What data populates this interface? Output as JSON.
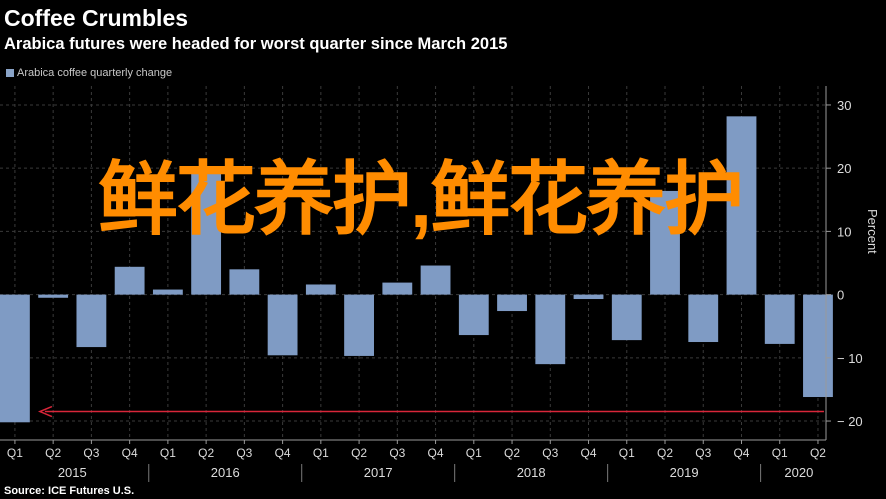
{
  "header": {
    "title": "Coffee Crumbles",
    "subtitle": "Arabica futures were headed for worst quarter since March 2015"
  },
  "legend": {
    "label": "Arabica coffee quarterly change"
  },
  "source": "Source: ICE Futures U.S.",
  "watermark": "鲜花养护,鲜花养护",
  "colors": {
    "bar": "#7f9bc4",
    "arrow": "#d8263a",
    "background": "#000000",
    "watermark": "#ff8c00"
  },
  "chart_data": {
    "type": "bar",
    "quarter_labels": [
      "Q1",
      "Q2",
      "Q3",
      "Q4",
      "Q1",
      "Q2",
      "Q3",
      "Q4",
      "Q1",
      "Q2",
      "Q3",
      "Q4",
      "Q1",
      "Q2",
      "Q3",
      "Q4",
      "Q1",
      "Q2",
      "Q3",
      "Q4",
      "Q1",
      "Q2"
    ],
    "years": [
      {
        "label": "2015",
        "start": 0,
        "end": 3
      },
      {
        "label": "2016",
        "start": 4,
        "end": 7
      },
      {
        "label": "2017",
        "start": 8,
        "end": 11
      },
      {
        "label": "2018",
        "start": 12,
        "end": 15
      },
      {
        "label": "2019",
        "start": 16,
        "end": 19
      },
      {
        "label": "2020",
        "start": 20,
        "end": 21
      }
    ],
    "series": [
      {
        "name": "Arabica coffee quarterly change",
        "values": [
          -20.2,
          -0.5,
          -8.3,
          4.4,
          0.8,
          19.2,
          4.0,
          -9.6,
          1.6,
          -9.7,
          1.9,
          4.6,
          -6.4,
          -2.6,
          -11.0,
          -0.7,
          -7.2,
          16.4,
          -7.5,
          28.2,
          -7.8,
          -16.2
        ]
      }
    ],
    "ylabel": "Percent",
    "ylim": [
      -23,
      33
    ],
    "yticks": [
      -20,
      -10,
      0,
      10,
      20,
      30
    ],
    "grid": true,
    "legend_position": "top-left",
    "annotation": {
      "type": "arrow",
      "value": -18.5,
      "direction": "left"
    }
  }
}
